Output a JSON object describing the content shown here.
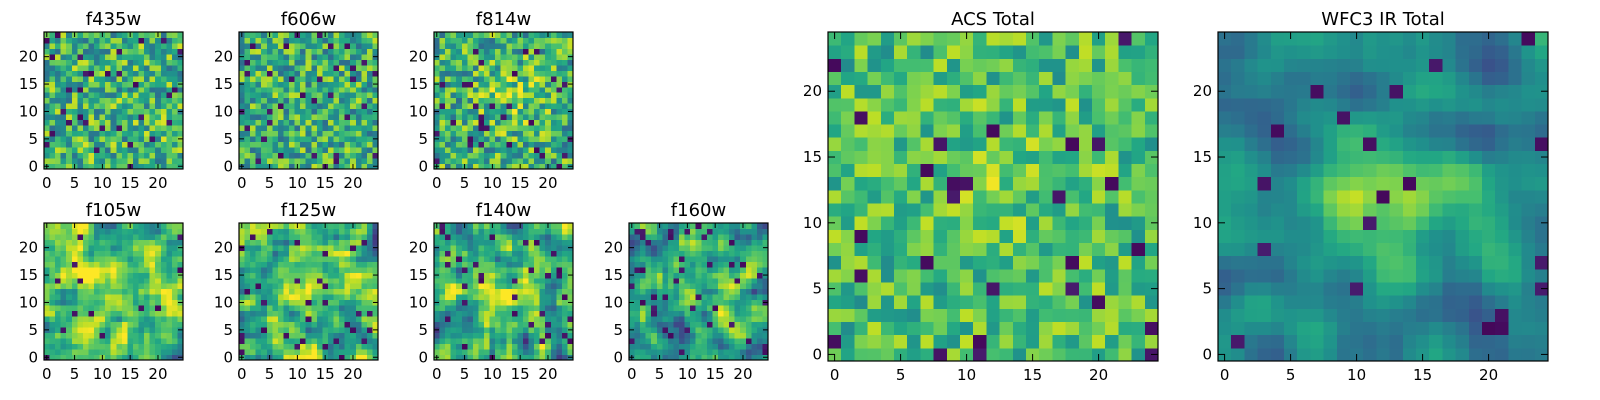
{
  "figure": {
    "title": ""
  },
  "chart_data": [
    {
      "type": "heatmap",
      "title": "f435w",
      "colormap": "viridis",
      "xlim": [
        0,
        24
      ],
      "ylim": [
        0,
        24
      ],
      "xticks": [
        0,
        5,
        10,
        15,
        20
      ],
      "yticks": [
        0,
        5,
        10,
        15,
        20
      ],
      "xtick_labels": [
        "0",
        "5",
        "10",
        "15",
        "20"
      ],
      "ytick_labels": [
        "0",
        "5",
        "10",
        "15",
        "20"
      ],
      "noise": 0.3,
      "blur": 0,
      "base": 0.64,
      "bias": 0.0,
      "sink": 0.05,
      "seed": 11
    },
    {
      "type": "heatmap",
      "title": "f606w",
      "colormap": "viridis",
      "xlim": [
        0,
        24
      ],
      "ylim": [
        0,
        24
      ],
      "xticks": [
        0,
        5,
        10,
        15,
        20
      ],
      "yticks": [
        0,
        5,
        10,
        15,
        20
      ],
      "xtick_labels": [
        "0",
        "5",
        "10",
        "15",
        "20"
      ],
      "ytick_labels": [
        "0",
        "5",
        "10",
        "15",
        "20"
      ],
      "noise": 0.3,
      "blur": 0,
      "base": 0.63,
      "bias": 0.0,
      "sink": 0.05,
      "seed": 23
    },
    {
      "type": "heatmap",
      "title": "f814w",
      "colormap": "viridis",
      "xlim": [
        0,
        24
      ],
      "ylim": [
        0,
        24
      ],
      "xticks": [
        0,
        5,
        10,
        15,
        20
      ],
      "yticks": [
        0,
        5,
        10,
        15,
        20
      ],
      "xtick_labels": [
        "0",
        "5",
        "10",
        "15",
        "20"
      ],
      "ytick_labels": [
        "0",
        "5",
        "10",
        "15",
        "20"
      ],
      "noise": 0.3,
      "blur": 0,
      "base": 0.64,
      "bias": 0.14,
      "sink": 0.05,
      "seed": 37
    },
    {
      "type": "heatmap",
      "title": "f105w",
      "colormap": "viridis",
      "xlim": [
        0,
        24
      ],
      "ylim": [
        0,
        24
      ],
      "xticks": [
        0,
        5,
        10,
        15,
        20
      ],
      "yticks": [
        0,
        5,
        10,
        15,
        20
      ],
      "xtick_labels": [
        "0",
        "5",
        "10",
        "15",
        "20"
      ],
      "ytick_labels": [
        "0",
        "5",
        "10",
        "15",
        "20"
      ],
      "noise": 0.26,
      "blur": 1,
      "base": 0.7,
      "bias": 0.14,
      "sink": 0.03,
      "seed": 41
    },
    {
      "type": "heatmap",
      "title": "f125w",
      "colormap": "viridis",
      "xlim": [
        0,
        24
      ],
      "ylim": [
        0,
        24
      ],
      "xticks": [
        0,
        5,
        10,
        15,
        20
      ],
      "yticks": [
        0,
        5,
        10,
        15,
        20
      ],
      "xtick_labels": [
        "0",
        "5",
        "10",
        "15",
        "20"
      ],
      "ytick_labels": [
        "0",
        "5",
        "10",
        "15",
        "20"
      ],
      "noise": 0.28,
      "blur": 1,
      "base": 0.66,
      "bias": 0.1,
      "sink": 0.04,
      "seed": 53
    },
    {
      "type": "heatmap",
      "title": "f140w",
      "colormap": "viridis",
      "xlim": [
        0,
        24
      ],
      "ylim": [
        0,
        24
      ],
      "xticks": [
        0,
        5,
        10,
        15,
        20
      ],
      "yticks": [
        0,
        5,
        10,
        15,
        20
      ],
      "xtick_labels": [
        "0",
        "5",
        "10",
        "15",
        "20"
      ],
      "ytick_labels": [
        "0",
        "5",
        "10",
        "15",
        "20"
      ],
      "noise": 0.28,
      "blur": 1,
      "base": 0.62,
      "bias": 0.16,
      "sink": 0.05,
      "seed": 67
    },
    {
      "type": "heatmap",
      "title": "f160w",
      "colormap": "viridis",
      "xlim": [
        0,
        24
      ],
      "ylim": [
        0,
        24
      ],
      "xticks": [
        0,
        5,
        10,
        15,
        20
      ],
      "yticks": [
        0,
        5,
        10,
        15,
        20
      ],
      "xtick_labels": [
        "0",
        "5",
        "10",
        "15",
        "20"
      ],
      "ytick_labels": [
        "0",
        "5",
        "10",
        "15",
        "20"
      ],
      "noise": 0.26,
      "blur": 1,
      "base": 0.56,
      "bias": 0.16,
      "sink": 0.06,
      "seed": 79
    },
    {
      "type": "heatmap",
      "title": "ACS Total",
      "colormap": "viridis",
      "xlim": [
        0,
        24
      ],
      "ylim": [
        0,
        24
      ],
      "xticks": [
        0,
        5,
        10,
        15,
        20
      ],
      "yticks": [
        0,
        5,
        10,
        15,
        20
      ],
      "xtick_labels": [
        "0",
        "5",
        "10",
        "15",
        "20"
      ],
      "ytick_labels": [
        "0",
        "5",
        "10",
        "15",
        "20"
      ],
      "noise": 0.22,
      "blur": 0,
      "base": 0.7,
      "bias": 0.08,
      "sink": 0.035,
      "seed": 83
    },
    {
      "type": "heatmap",
      "title": "WFC3 IR Total",
      "colormap": "viridis",
      "xlim": [
        0,
        24
      ],
      "ylim": [
        0,
        24
      ],
      "xticks": [
        0,
        5,
        10,
        15,
        20
      ],
      "yticks": [
        0,
        5,
        10,
        15,
        20
      ],
      "xtick_labels": [
        "0",
        "5",
        "10",
        "15",
        "20"
      ],
      "ytick_labels": [
        "0",
        "5",
        "10",
        "15",
        "20"
      ],
      "noise": 0.16,
      "blur": 2,
      "base": 0.42,
      "bias": 0.4,
      "sink": 0.03,
      "seed": 97
    }
  ]
}
